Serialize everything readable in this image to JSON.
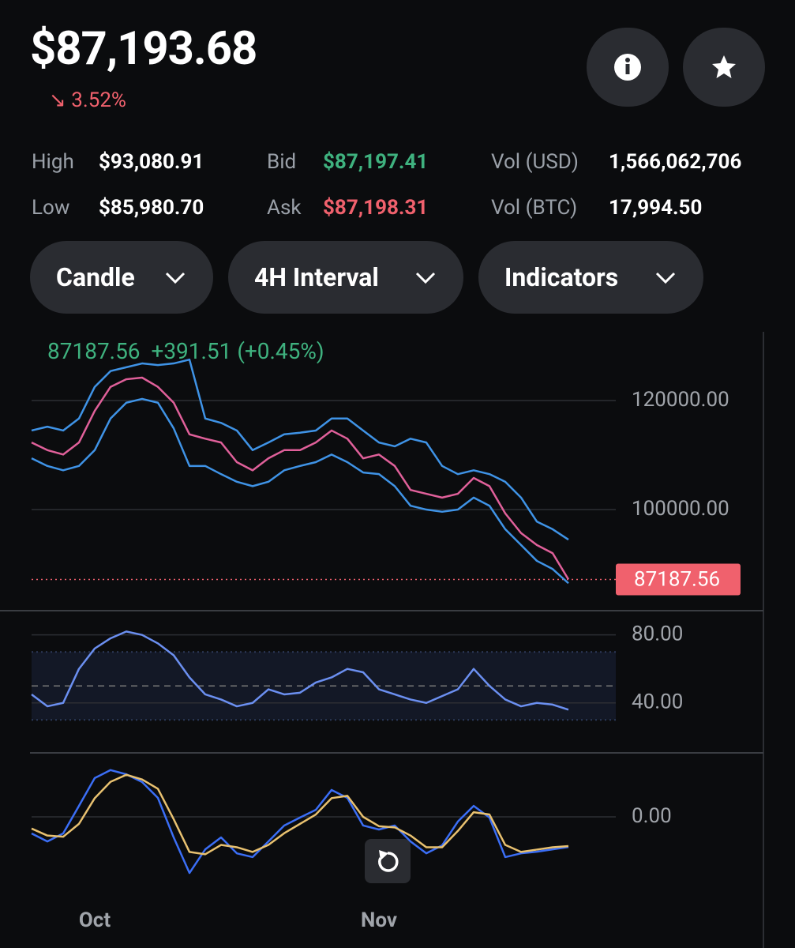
{
  "header": {
    "price": "$87,193.68",
    "change": "3.52%"
  },
  "stats": [
    [
      {
        "label": "High",
        "value": "$93,080.91"
      },
      {
        "label": "Bid",
        "value": "$87,197.41"
      },
      {
        "label": "Vol (USD)",
        "value": "1,566,062,706"
      }
    ],
    [
      {
        "label": "Low",
        "value": "$85,980.70"
      },
      {
        "label": "Ask",
        "value": "$87,198.31"
      },
      {
        "label": "Vol (BTC)",
        "value": "17,994.50"
      }
    ]
  ],
  "controls": [
    "Candle",
    "4H Interval",
    "Indicators"
  ],
  "legend": {
    "price": "87187.56",
    "change": "+391.51 (+0.45%)"
  },
  "charts": [
    {
      "type": "line",
      "ylim": [
        81900,
        132600
      ],
      "yticks": [
        {
          "value": 120000,
          "label": "120000.00"
        },
        {
          "value": 100000,
          "label": "100000.00"
        }
      ],
      "last_price": {
        "value": 87187.56,
        "label": "87187.56"
      },
      "series": [
        {
          "name": "Upper",
          "color": "#3f93e6",
          "values": [
            114500,
            115200,
            114500,
            116700,
            122500,
            125400,
            126100,
            126800,
            126500,
            126800,
            127500,
            116700,
            115900,
            114500,
            110900,
            112300,
            113800,
            114100,
            114500,
            116700,
            116700,
            114500,
            112300,
            111600,
            113000,
            112300,
            108000,
            106500,
            107200,
            106500,
            105100,
            102200,
            97800,
            96400,
            94500
          ]
        },
        {
          "name": "Lower",
          "color": "#3f93e6",
          "values": [
            109400,
            108000,
            107200,
            108000,
            110900,
            116700,
            119600,
            120300,
            119600,
            114900,
            108000,
            108000,
            106500,
            105100,
            104300,
            105100,
            107200,
            108000,
            108700,
            110100,
            108700,
            106800,
            106500,
            104300,
            100700,
            100000,
            99600,
            100000,
            102200,
            100700,
            96400,
            93500,
            90600,
            89100,
            86500
          ]
        },
        {
          "name": "Close",
          "color": "#e0609a",
          "values": [
            112300,
            110900,
            110100,
            112300,
            118100,
            122500,
            123900,
            124200,
            122500,
            119600,
            113800,
            113000,
            112300,
            108700,
            107200,
            109400,
            110900,
            110900,
            112300,
            114500,
            113000,
            109400,
            110100,
            108000,
            103600,
            102900,
            102200,
            102900,
            105800,
            104300,
            99300,
            95700,
            93500,
            92000,
            87200
          ]
        }
      ]
    },
    {
      "type": "line",
      "ylim": [
        12,
        91
      ],
      "yticks": [
        {
          "value": 80,
          "label": "80.00"
        },
        {
          "value": 40,
          "label": "40.00"
        }
      ],
      "band": [
        30,
        70
      ],
      "midline": 50,
      "series": [
        {
          "name": "RSI",
          "color": "#6b8ff0",
          "values": [
            45,
            38,
            40,
            60,
            72,
            78,
            82,
            80,
            75,
            68,
            55,
            45,
            42,
            38,
            40,
            48,
            45,
            46,
            52,
            55,
            60,
            58,
            48,
            45,
            42,
            40,
            44,
            48,
            60,
            50,
            42,
            38,
            40,
            39,
            36
          ]
        }
      ]
    },
    {
      "type": "line",
      "ylim": [
        -2500,
        2500
      ],
      "yticks": [
        {
          "value": 0,
          "label": "0.00"
        }
      ],
      "categories": [
        null,
        null,
        null,
        null,
        "Oct",
        null,
        null,
        null,
        null,
        null,
        null,
        null,
        null,
        null,
        null,
        null,
        null,
        null,
        null,
        null,
        null,
        null,
        "Nov",
        null,
        null,
        null,
        null,
        null,
        null,
        null,
        null,
        null,
        null,
        null,
        null
      ],
      "series": [
        {
          "name": "MACD",
          "color": "#3b6ef5",
          "values": [
            -710,
            -1050,
            -710,
            470,
            1660,
            2000,
            1820,
            1490,
            810,
            -880,
            -2400,
            -1390,
            -880,
            -1560,
            -1720,
            -1050,
            -370,
            -30,
            300,
            1150,
            810,
            -370,
            -540,
            -370,
            -1050,
            -1560,
            -1220,
            -200,
            470,
            -30,
            -1720,
            -1560,
            -1490,
            -1390,
            -1290
          ]
        },
        {
          "name": "Signal",
          "color": "#e8c170",
          "values": [
            -500,
            -800,
            -850,
            -300,
            800,
            1500,
            1800,
            1600,
            1200,
            -100,
            -1500,
            -1600,
            -1200,
            -1300,
            -1500,
            -1200,
            -700,
            -300,
            100,
            800,
            900,
            0,
            -400,
            -450,
            -800,
            -1300,
            -1300,
            -600,
            200,
            100,
            -1200,
            -1500,
            -1400,
            -1300,
            -1250
          ]
        }
      ]
    }
  ]
}
